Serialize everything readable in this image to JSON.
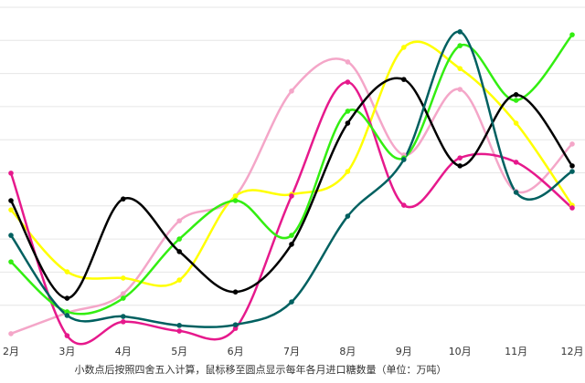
{
  "chart_data": {
    "type": "line",
    "categories": [
      "2月",
      "3月",
      "4月",
      "5月",
      "6月",
      "7月",
      "8月",
      "9月",
      "10月",
      "11月",
      "12月"
    ],
    "series": [
      {
        "color": "#f4a6c8",
        "values": [
          0.14,
          0.77,
          1.35,
          3.55,
          4.3,
          7.47,
          8.35,
          5.54,
          7.52,
          4.44,
          5.87
        ]
      },
      {
        "color": "#ffff00",
        "values": [
          3.88,
          2.01,
          1.82,
          1.76,
          4.3,
          4.35,
          5.04,
          8.79,
          8.15,
          6.5,
          4.02
        ]
      },
      {
        "color": "#e6198c",
        "values": [
          4.99,
          0.08,
          0.5,
          0.22,
          0.3,
          4.3,
          7.74,
          4.02,
          5.45,
          5.32,
          3.94
        ]
      },
      {
        "color": "#33ee11",
        "values": [
          2.31,
          0.8,
          1.21,
          3.0,
          4.16,
          3.11,
          6.86,
          5.45,
          8.84,
          7.19,
          9.17
        ]
      },
      {
        "color": "#000000",
        "values": [
          4.16,
          1.21,
          4.21,
          2.62,
          1.4,
          2.84,
          6.5,
          7.82,
          5.21,
          7.36,
          5.21
        ]
      },
      {
        "color": "#006060",
        "values": [
          3.11,
          0.69,
          0.66,
          0.39,
          0.41,
          1.1,
          3.69,
          5.4,
          9.26,
          4.41,
          5.04
        ]
      }
    ],
    "ylim": [
      0,
      10
    ],
    "yticks": [
      1,
      2,
      3,
      4,
      5,
      6,
      7,
      8,
      9,
      10
    ],
    "grid": true,
    "note": "小数点后按照四舍五入计算，鼠标移至圆点显示每年各月进口糖数量（单位：万吨）"
  }
}
